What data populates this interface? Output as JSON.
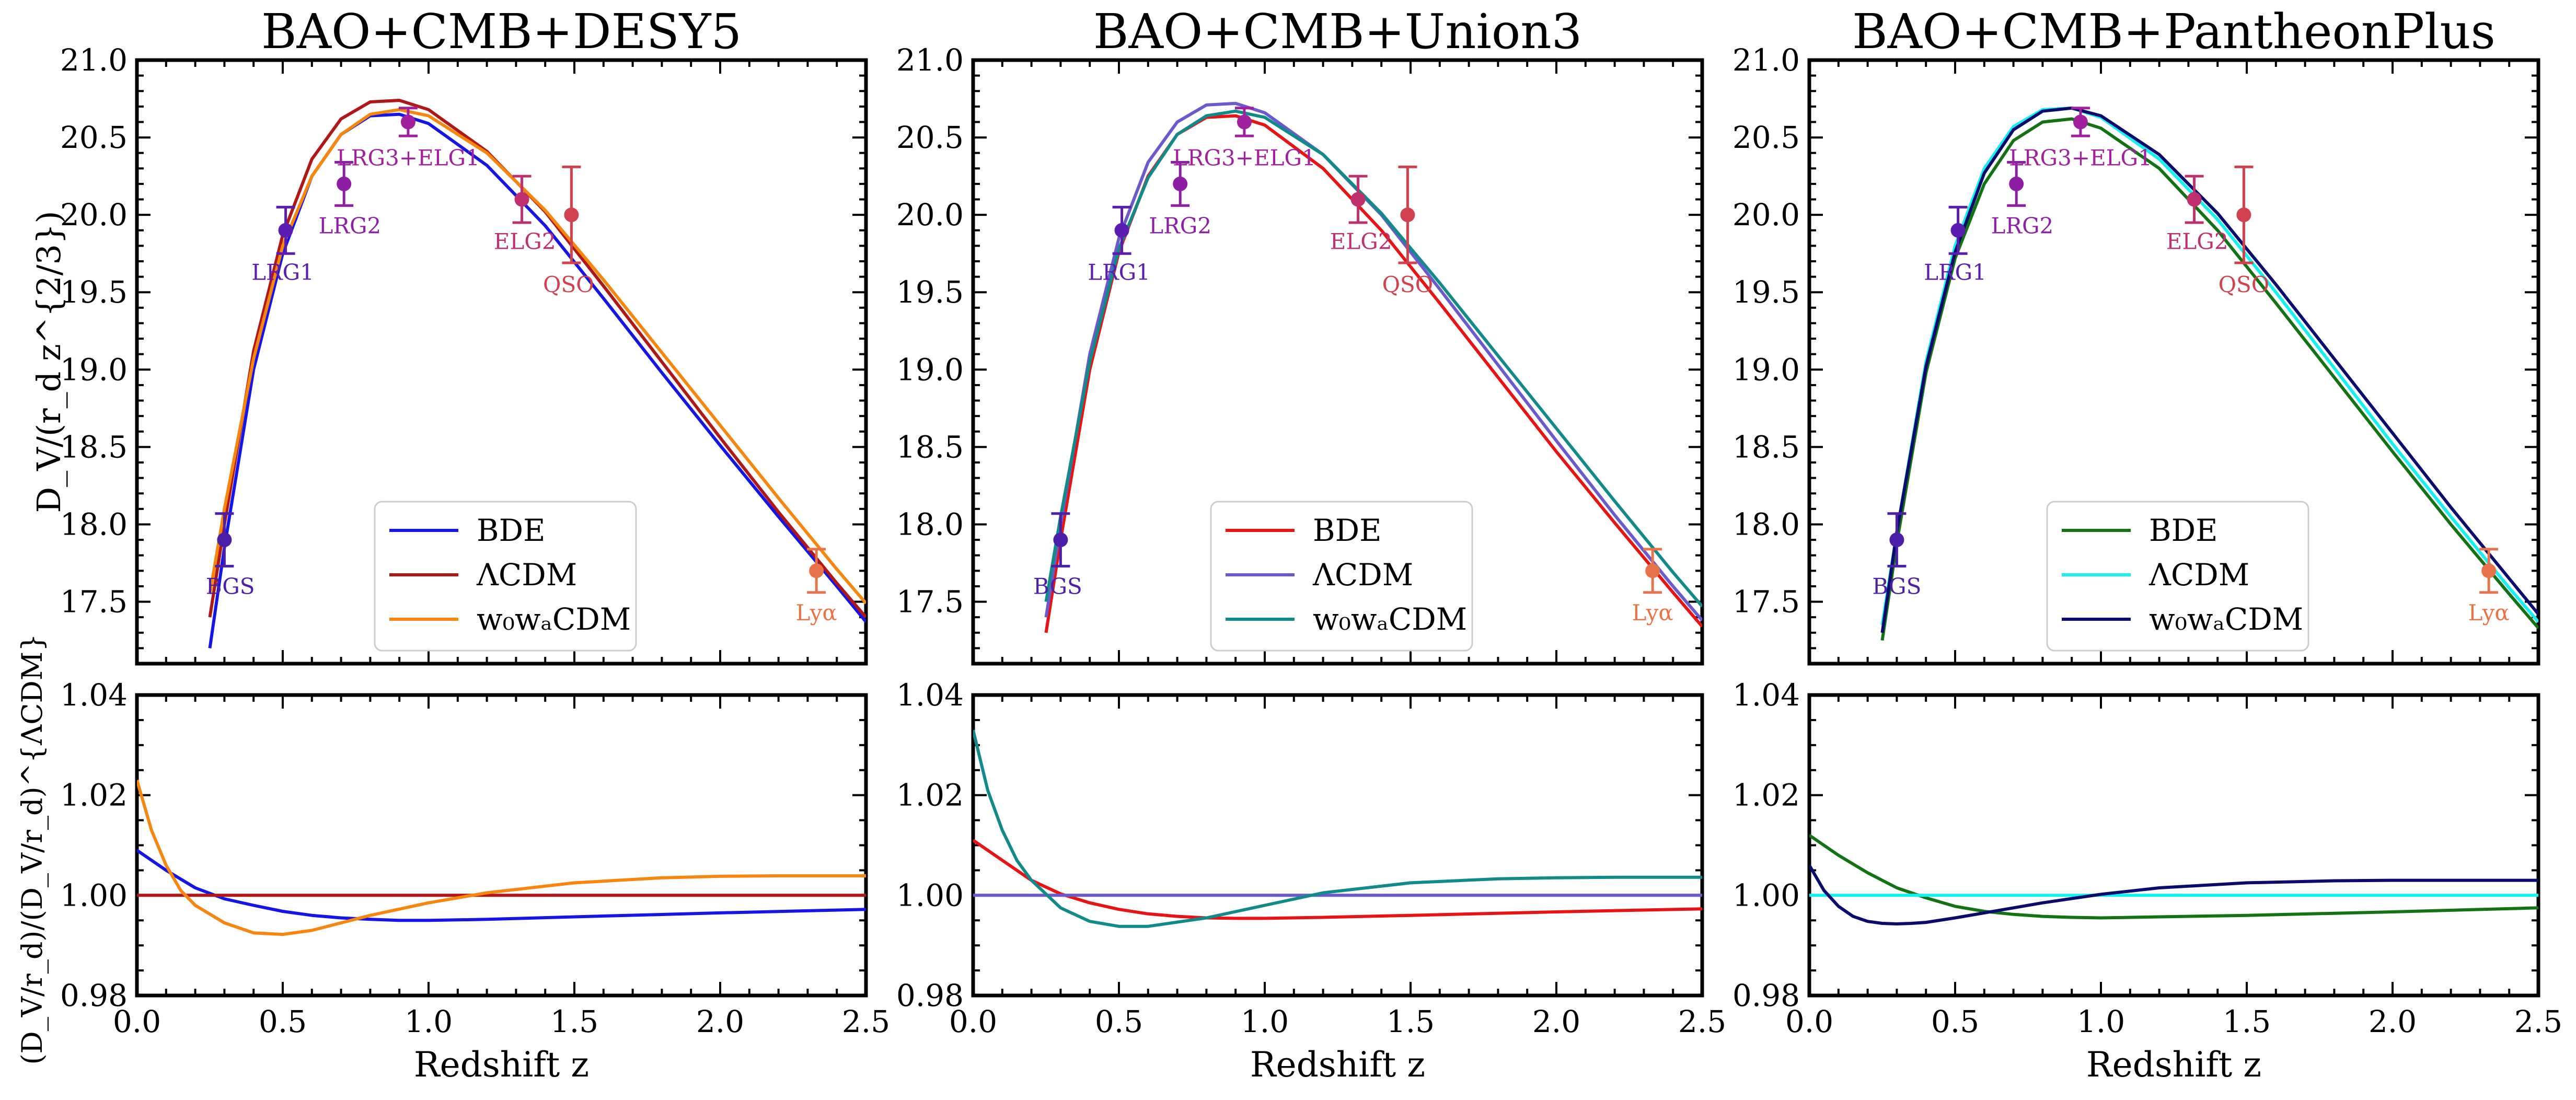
{
  "colors": {
    "label_purple": "#4B1FA8",
    "label_magenta": "#A0209E",
    "label_red": "#D3404E",
    "label_orange": "#E8734A"
  },
  "chart_data": [
    {
      "type": "line",
      "title": "BAO+CMB+DESY5",
      "xlabel": "Redshift z",
      "ylabel_top": "D_V/(r_d z^{2/3})",
      "ylabel_bottom": "(D_V/r_d)/(D_V/r_d)^{ΛCDM}",
      "xlim": [
        0.0,
        2.5
      ],
      "ylim_top": [
        17.1,
        21.0
      ],
      "ylim_bottom": [
        0.98,
        1.04
      ],
      "x_ticks": [
        "0.0",
        "0.5",
        "1.0",
        "1.5",
        "2.0",
        "2.5"
      ],
      "y_ticks_top": [
        "17.5",
        "18.0",
        "18.5",
        "19.0",
        "19.5",
        "20.0",
        "20.5",
        "21.0"
      ],
      "y_ticks_bottom": [
        "0.98",
        "1.00",
        "1.02",
        "1.04"
      ],
      "legend": {
        "position": "lower-center",
        "entries": [
          "BDE",
          "ΛCDM",
          "w₀wₐCDM"
        ]
      },
      "series": [
        {
          "name": "BDE",
          "color": "#1515E6",
          "x": [
            0.25,
            0.3,
            0.4,
            0.5,
            0.6,
            0.7,
            0.8,
            0.9,
            1.0,
            1.2,
            1.4,
            1.6,
            1.8,
            2.0,
            2.2,
            2.4,
            2.5
          ],
          "y": [
            17.2,
            17.85,
            19.0,
            19.75,
            20.25,
            20.52,
            20.64,
            20.65,
            20.59,
            20.32,
            19.93,
            19.46,
            18.98,
            18.51,
            18.05,
            17.6,
            17.37
          ],
          "ratio_x": [
            0.0,
            0.1,
            0.2,
            0.3,
            0.4,
            0.5,
            0.6,
            0.7,
            0.8,
            0.9,
            1.0,
            1.2,
            1.5,
            2.0,
            2.5
          ],
          "ratio_y": [
            1.009,
            1.005,
            1.0015,
            0.9993,
            0.998,
            0.9968,
            0.996,
            0.9955,
            0.9952,
            0.995,
            0.995,
            0.9952,
            0.9957,
            0.9965,
            0.9972
          ]
        },
        {
          "name": "ΛCDM",
          "color": "#B01818",
          "x": [
            0.25,
            0.3,
            0.4,
            0.5,
            0.6,
            0.7,
            0.8,
            0.9,
            1.0,
            1.2,
            1.4,
            1.6,
            1.8,
            2.0,
            2.2,
            2.4,
            2.5
          ],
          "y": [
            17.4,
            18.0,
            19.12,
            19.87,
            20.36,
            20.62,
            20.73,
            20.74,
            20.68,
            20.41,
            20.02,
            19.54,
            19.05,
            18.56,
            18.08,
            17.62,
            17.4
          ],
          "ratio_x": [
            0.0,
            2.5
          ],
          "ratio_y": [
            1.0,
            1.0
          ]
        },
        {
          "name": "w₀wₐCDM",
          "color": "#F7860F",
          "x": [
            0.25,
            0.3,
            0.4,
            0.5,
            0.6,
            0.7,
            0.8,
            0.9,
            1.0,
            1.2,
            1.4,
            1.6,
            1.8,
            2.0,
            2.2,
            2.4,
            2.5
          ],
          "y": [
            17.55,
            18.1,
            19.07,
            19.8,
            20.25,
            20.52,
            20.65,
            20.68,
            20.64,
            20.4,
            20.03,
            19.58,
            19.11,
            18.64,
            18.17,
            17.71,
            17.49
          ],
          "ratio_x": [
            0.0,
            0.05,
            0.1,
            0.15,
            0.2,
            0.3,
            0.4,
            0.5,
            0.6,
            0.8,
            1.0,
            1.2,
            1.5,
            1.8,
            2.0,
            2.2,
            2.5
          ],
          "ratio_y": [
            1.023,
            1.013,
            1.006,
            1.001,
            0.998,
            0.9945,
            0.9925,
            0.9922,
            0.993,
            0.996,
            0.9985,
            1.0005,
            1.0025,
            1.0035,
            1.0038,
            1.0039,
            1.0039
          ]
        }
      ],
      "points": [
        {
          "label": "BGS",
          "x": 0.3,
          "y": 17.9,
          "err": 0.17,
          "color": "#4B1FA8",
          "label_x": 0.32,
          "label_y": 17.55
        },
        {
          "label": "LRG1",
          "x": 0.51,
          "y": 19.9,
          "err": 0.15,
          "color": "#5A1DB0",
          "label_x": 0.5,
          "label_y": 19.58
        },
        {
          "label": "LRG2",
          "x": 0.71,
          "y": 20.2,
          "err": 0.14,
          "color": "#8C1FA6",
          "label_x": 0.73,
          "label_y": 19.88
        },
        {
          "label": "LRG3+ELG1",
          "x": 0.93,
          "y": 20.6,
          "err": 0.09,
          "color": "#A0209E",
          "label_x": 0.93,
          "label_y": 20.32
        },
        {
          "label": "ELG2",
          "x": 1.32,
          "y": 20.1,
          "err": 0.15,
          "color": "#C0306E",
          "label_x": 1.33,
          "label_y": 19.78
        },
        {
          "label": "QSO",
          "x": 1.49,
          "y": 20.0,
          "err": 0.31,
          "color": "#D3404E",
          "label_x": 1.48,
          "label_y": 19.5
        },
        {
          "label": "Lyα",
          "x": 2.33,
          "y": 17.7,
          "err": 0.14,
          "color": "#E8734A",
          "label_x": 2.33,
          "label_y": 17.38
        }
      ]
    },
    {
      "type": "line",
      "title": "BAO+CMB+Union3",
      "xlabel": "Redshift z",
      "xlim": [
        0.0,
        2.5
      ],
      "ylim_top": [
        17.1,
        21.0
      ],
      "ylim_bottom": [
        0.98,
        1.04
      ],
      "x_ticks": [
        "0.0",
        "0.5",
        "1.0",
        "1.5",
        "2.0",
        "2.5"
      ],
      "y_ticks_top": [
        "17.5",
        "18.0",
        "18.5",
        "19.0",
        "19.5",
        "20.0",
        "20.5",
        "21.0"
      ],
      "y_ticks_bottom": [
        "0.98",
        "1.00",
        "1.02",
        "1.04"
      ],
      "legend": {
        "position": "lower-center",
        "entries": [
          "BDE",
          "ΛCDM",
          "w₀wₐCDM"
        ]
      },
      "series": [
        {
          "name": "BDE",
          "color": "#E81414",
          "x": [
            0.25,
            0.3,
            0.4,
            0.5,
            0.6,
            0.7,
            0.8,
            0.9,
            1.0,
            1.2,
            1.4,
            1.6,
            1.8,
            2.0,
            2.2,
            2.4,
            2.5
          ],
          "y": [
            17.3,
            17.9,
            19.0,
            19.76,
            20.25,
            20.52,
            20.63,
            20.64,
            20.58,
            20.3,
            19.9,
            19.43,
            18.95,
            18.47,
            18.01,
            17.56,
            17.34
          ],
          "ratio_x": [
            0.0,
            0.1,
            0.2,
            0.3,
            0.4,
            0.5,
            0.6,
            0.7,
            0.8,
            0.9,
            1.0,
            1.2,
            1.5,
            2.0,
            2.5
          ],
          "ratio_y": [
            1.011,
            1.007,
            1.003,
            1.0003,
            0.9985,
            0.9972,
            0.9963,
            0.9958,
            0.9955,
            0.9954,
            0.9954,
            0.9956,
            0.996,
            0.9967,
            0.9973
          ]
        },
        {
          "name": "ΛCDM",
          "color": "#6A5ACD",
          "x": [
            0.25,
            0.3,
            0.4,
            0.5,
            0.6,
            0.7,
            0.8,
            0.9,
            1.0,
            1.2,
            1.4,
            1.6,
            1.8,
            2.0,
            2.2,
            2.4,
            2.5
          ],
          "y": [
            17.4,
            18.0,
            19.1,
            19.85,
            20.34,
            20.6,
            20.71,
            20.72,
            20.66,
            20.39,
            20.0,
            19.52,
            19.03,
            18.54,
            18.06,
            17.6,
            17.38
          ],
          "ratio_x": [
            0.0,
            2.5
          ],
          "ratio_y": [
            1.0,
            1.0
          ]
        },
        {
          "name": "w₀wₐCDM",
          "color": "#138A8A",
          "x": [
            0.25,
            0.3,
            0.4,
            0.5,
            0.6,
            0.7,
            0.8,
            0.9,
            1.0,
            1.2,
            1.4,
            1.6,
            1.8,
            2.0,
            2.2,
            2.4,
            2.5
          ],
          "y": [
            17.5,
            18.05,
            19.05,
            19.78,
            20.24,
            20.52,
            20.64,
            20.67,
            20.63,
            20.39,
            20.01,
            19.56,
            19.09,
            18.62,
            18.15,
            17.69,
            17.47
          ],
          "ratio_x": [
            0.0,
            0.05,
            0.1,
            0.15,
            0.2,
            0.3,
            0.4,
            0.5,
            0.6,
            0.8,
            1.0,
            1.2,
            1.5,
            1.8,
            2.0,
            2.2,
            2.5
          ],
          "ratio_y": [
            1.033,
            1.021,
            1.013,
            1.007,
            1.003,
            0.9975,
            0.9948,
            0.9938,
            0.9938,
            0.9955,
            0.998,
            1.0005,
            1.0025,
            1.0033,
            1.0035,
            1.0036,
            1.0036
          ]
        }
      ],
      "points": [
        {
          "label": "BGS",
          "x": 0.3,
          "y": 17.9,
          "err": 0.17,
          "color": "#4B1FA8",
          "label_x": 0.29,
          "label_y": 17.55
        },
        {
          "label": "LRG1",
          "x": 0.51,
          "y": 19.9,
          "err": 0.15,
          "color": "#5A1DB0",
          "label_x": 0.5,
          "label_y": 19.58
        },
        {
          "label": "LRG2",
          "x": 0.71,
          "y": 20.2,
          "err": 0.14,
          "color": "#8C1FA6",
          "label_x": 0.71,
          "label_y": 19.88
        },
        {
          "label": "LRG3+ELG1",
          "x": 0.93,
          "y": 20.6,
          "err": 0.09,
          "color": "#A0209E",
          "label_x": 0.93,
          "label_y": 20.32
        },
        {
          "label": "ELG2",
          "x": 1.32,
          "y": 20.1,
          "err": 0.15,
          "color": "#C0306E",
          "label_x": 1.33,
          "label_y": 19.78
        },
        {
          "label": "QSO",
          "x": 1.49,
          "y": 20.0,
          "err": 0.31,
          "color": "#D3404E",
          "label_x": 1.49,
          "label_y": 19.5
        },
        {
          "label": "Lyα",
          "x": 2.33,
          "y": 17.7,
          "err": 0.14,
          "color": "#E8734A",
          "label_x": 2.33,
          "label_y": 17.38
        }
      ]
    },
    {
      "type": "line",
      "title": "BAO+CMB+PantheonPlus",
      "xlabel": "Redshift z",
      "xlim": [
        0.0,
        2.5
      ],
      "ylim_top": [
        17.1,
        21.0
      ],
      "ylim_bottom": [
        0.98,
        1.04
      ],
      "x_ticks": [
        "0.0",
        "0.5",
        "1.0",
        "1.5",
        "2.0",
        "2.5"
      ],
      "y_ticks_top": [
        "17.5",
        "18.0",
        "18.5",
        "19.0",
        "19.5",
        "20.0",
        "20.5",
        "21.0"
      ],
      "y_ticks_bottom": [
        "0.98",
        "1.00",
        "1.02",
        "1.04"
      ],
      "legend": {
        "position": "lower-center",
        "entries": [
          "BDE",
          "ΛCDM",
          "w₀wₐCDM"
        ]
      },
      "series": [
        {
          "name": "BDE",
          "color": "#137313",
          "x": [
            0.25,
            0.3,
            0.4,
            0.5,
            0.6,
            0.7,
            0.8,
            0.9,
            1.0,
            1.2,
            1.4,
            1.6,
            1.8,
            2.0,
            2.2,
            2.4,
            2.5
          ],
          "y": [
            17.25,
            17.88,
            18.98,
            19.72,
            20.2,
            20.48,
            20.6,
            20.62,
            20.56,
            20.3,
            19.9,
            19.43,
            18.95,
            18.47,
            18.0,
            17.55,
            17.33
          ],
          "ratio_x": [
            0.0,
            0.1,
            0.2,
            0.3,
            0.4,
            0.5,
            0.6,
            0.7,
            0.8,
            0.9,
            1.0,
            1.2,
            1.5,
            2.0,
            2.5
          ],
          "ratio_y": [
            1.012,
            1.008,
            1.0045,
            1.0015,
            0.9995,
            0.9978,
            0.9968,
            0.9962,
            0.9958,
            0.9956,
            0.9955,
            0.9957,
            0.996,
            0.9967,
            0.9975
          ]
        },
        {
          "name": "ΛCDM",
          "color": "#17F0F0",
          "x": [
            0.25,
            0.3,
            0.4,
            0.5,
            0.6,
            0.7,
            0.8,
            0.9,
            1.0,
            1.2,
            1.4,
            1.6,
            1.8,
            2.0,
            2.2,
            2.4,
            2.5
          ],
          "y": [
            17.35,
            17.95,
            19.05,
            19.8,
            20.3,
            20.57,
            20.68,
            20.69,
            20.63,
            20.36,
            19.97,
            19.5,
            19.01,
            18.52,
            18.05,
            17.59,
            17.37
          ],
          "ratio_x": [
            0.0,
            2.5
          ],
          "ratio_y": [
            1.0,
            1.0
          ]
        },
        {
          "name": "w₀wₐCDM",
          "color": "#0B0B6E",
          "x": [
            0.25,
            0.3,
            0.4,
            0.5,
            0.6,
            0.7,
            0.8,
            0.9,
            1.0,
            1.2,
            1.4,
            1.6,
            1.8,
            2.0,
            2.2,
            2.4,
            2.5
          ],
          "y": [
            17.3,
            17.95,
            19.02,
            19.76,
            20.27,
            20.55,
            20.67,
            20.69,
            20.64,
            20.39,
            20.01,
            19.55,
            19.07,
            18.59,
            18.11,
            17.65,
            17.42
          ],
          "ratio_x": [
            0.0,
            0.05,
            0.1,
            0.15,
            0.2,
            0.25,
            0.3,
            0.35,
            0.4,
            0.5,
            0.6,
            0.8,
            1.0,
            1.2,
            1.5,
            1.8,
            2.0,
            2.2,
            2.5
          ],
          "ratio_y": [
            1.006,
            1.001,
            0.9978,
            0.9958,
            0.9948,
            0.9944,
            0.9943,
            0.9944,
            0.9946,
            0.9955,
            0.9965,
            0.9985,
            1.0002,
            1.0015,
            1.0025,
            1.0029,
            1.003,
            1.003,
            1.003
          ]
        }
      ],
      "points": [
        {
          "label": "BGS",
          "x": 0.3,
          "y": 17.9,
          "err": 0.17,
          "color": "#4B1FA8",
          "label_x": 0.3,
          "label_y": 17.55
        },
        {
          "label": "LRG1",
          "x": 0.51,
          "y": 19.9,
          "err": 0.15,
          "color": "#5A1DB0",
          "label_x": 0.5,
          "label_y": 19.58
        },
        {
          "label": "LRG2",
          "x": 0.71,
          "y": 20.2,
          "err": 0.14,
          "color": "#8C1FA6",
          "label_x": 0.73,
          "label_y": 19.88
        },
        {
          "label": "LRG3+ELG1",
          "x": 0.93,
          "y": 20.6,
          "err": 0.09,
          "color": "#A0209E",
          "label_x": 0.93,
          "label_y": 20.32
        },
        {
          "label": "ELG2",
          "x": 1.32,
          "y": 20.1,
          "err": 0.15,
          "color": "#C0306E",
          "label_x": 1.33,
          "label_y": 19.78
        },
        {
          "label": "QSO",
          "x": 1.49,
          "y": 20.0,
          "err": 0.31,
          "color": "#D3404E",
          "label_x": 1.49,
          "label_y": 19.5
        },
        {
          "label": "Lyα",
          "x": 2.33,
          "y": 17.7,
          "err": 0.14,
          "color": "#E8734A",
          "label_x": 2.33,
          "label_y": 17.38
        }
      ]
    }
  ]
}
